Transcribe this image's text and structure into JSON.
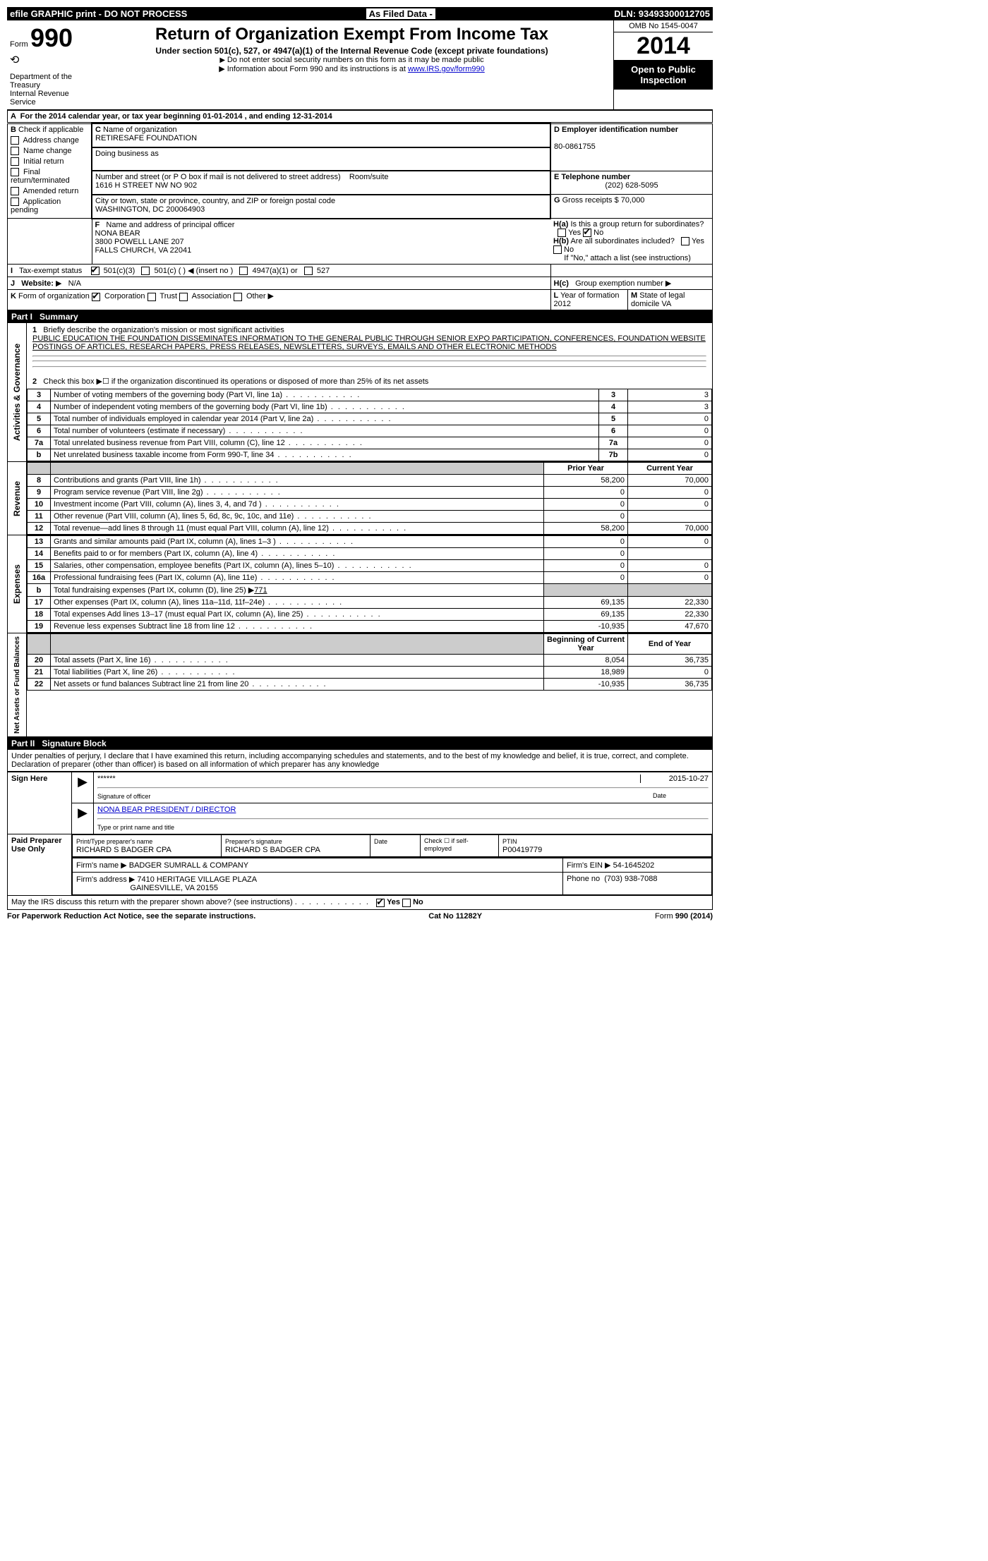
{
  "topbar": {
    "left": "efile GRAPHIC print - DO NOT PROCESS",
    "mid": "As Filed Data -",
    "right": "DLN: 93493300012705"
  },
  "header": {
    "form_prefix": "Form",
    "form_number": "990",
    "dept": "Department of the Treasury",
    "irs": "Internal Revenue Service",
    "title": "Return of Organization Exempt From Income Tax",
    "subtitle": "Under section 501(c), 527, or 4947(a)(1) of the Internal Revenue Code (except private foundations)",
    "note1": "Do not enter social security numbers on this form as it may be made public",
    "note2_prefix": "Information about Form 990 and its instructions is at ",
    "note2_link": "www.IRS.gov/form990",
    "omb": "OMB No 1545-0047",
    "year": "2014",
    "inspection": "Open to Public Inspection"
  },
  "sectionA": {
    "line": "For the 2014 calendar year, or tax year beginning 01-01-2014    , and ending 12-31-2014"
  },
  "sectionB": {
    "title": "Check if applicable",
    "items": [
      "Address change",
      "Name change",
      "Initial return",
      "Final return/terminated",
      "Amended return",
      "Application pending"
    ]
  },
  "sectionC": {
    "name_label": "Name of organization",
    "name": "RETIRESAFE FOUNDATION",
    "dba_label": "Doing business as",
    "dba": "",
    "street_label": "Number and street (or P O box if mail is not delivered to street address)",
    "street": "1616 H STREET NW NO 902",
    "room_label": "Room/suite",
    "city_label": "City or town, state or province, country, and ZIP or foreign postal code",
    "city": "WASHINGTON, DC  200064903"
  },
  "sectionD": {
    "label": "Employer identification number",
    "value": "80-0861755"
  },
  "sectionE": {
    "label": "Telephone number",
    "value": "(202) 628-5095"
  },
  "sectionG": {
    "label": "Gross receipts $",
    "value": "70,000"
  },
  "sectionF": {
    "label": "Name and address of principal officer",
    "name": "NONA BEAR",
    "addr1": "3800 POWELL LANE 207",
    "addr2": "FALLS CHURCH, VA  22041"
  },
  "sectionH": {
    "a": "Is this a group return for subordinates?",
    "b": "Are all subordinates included?",
    "b_note": "If \"No,\" attach a list (see instructions)",
    "c": "Group exemption number",
    "yes": "Yes",
    "no": "No"
  },
  "sectionI": {
    "label": "Tax-exempt status",
    "opt1": "501(c)(3)",
    "opt2": "501(c) (  )",
    "opt2_note": "(insert no )",
    "opt3": "4947(a)(1) or",
    "opt4": "527"
  },
  "sectionJ": {
    "label": "Website:",
    "value": "N/A"
  },
  "sectionK": {
    "label": "Form of organization",
    "opts": [
      "Corporation",
      "Trust",
      "Association",
      "Other"
    ]
  },
  "sectionL": {
    "label": "Year of formation",
    "value": "2012"
  },
  "sectionM": {
    "label": "State of legal domicile",
    "value": "VA"
  },
  "part1": {
    "title": "Part I",
    "name": "Summary",
    "line1_label": "Briefly describe the organization's mission or most significant activities",
    "line1_text": "PUBLIC EDUCATION    THE FOUNDATION DISSEMINATES INFORMATION TO THE GENERAL PUBLIC THROUGH SENIOR EXPO PARTICIPATION, CONFERENCES, FOUNDATION WEBSITE POSTINGS OF ARTICLES, RESEARCH PAPERS, PRESS RELEASES, NEWSLETTERS, SURVEYS, EMAILS AND OTHER ELECTRONIC METHODS",
    "line2": "Check this box ▶☐ if the organization discontinued its operations or disposed of more than 25% of its net assets",
    "governance_lines": [
      {
        "n": "3",
        "label": "Number of voting members of the governing body (Part VI, line 1a)",
        "rn": "3",
        "val": "3"
      },
      {
        "n": "4",
        "label": "Number of independent voting members of the governing body (Part VI, line 1b)",
        "rn": "4",
        "val": "3"
      },
      {
        "n": "5",
        "label": "Total number of individuals employed in calendar year 2014 (Part V, line 2a)",
        "rn": "5",
        "val": "0"
      },
      {
        "n": "6",
        "label": "Total number of volunteers (estimate if necessary)",
        "rn": "6",
        "val": "0"
      },
      {
        "n": "7a",
        "label": "Total unrelated business revenue from Part VIII, column (C), line 12",
        "rn": "7a",
        "val": "0"
      },
      {
        "n": "b",
        "label": "Net unrelated business taxable income from Form 990-T, line 34",
        "rn": "7b",
        "val": "0"
      }
    ],
    "col_headers": {
      "prior": "Prior Year",
      "current": "Current Year"
    },
    "revenue_lines": [
      {
        "n": "8",
        "label": "Contributions and grants (Part VIII, line 1h)",
        "p": "58,200",
        "c": "70,000"
      },
      {
        "n": "9",
        "label": "Program service revenue (Part VIII, line 2g)",
        "p": "0",
        "c": "0"
      },
      {
        "n": "10",
        "label": "Investment income (Part VIII, column (A), lines 3, 4, and 7d )",
        "p": "0",
        "c": "0"
      },
      {
        "n": "11",
        "label": "Other revenue (Part VIII, column (A), lines 5, 6d, 8c, 9c, 10c, and 11e)",
        "p": "0",
        "c": ""
      },
      {
        "n": "12",
        "label": "Total revenue—add lines 8 through 11 (must equal Part VIII, column (A), line 12)",
        "p": "58,200",
        "c": "70,000"
      }
    ],
    "expense_lines": [
      {
        "n": "13",
        "label": "Grants and similar amounts paid (Part IX, column (A), lines 1–3 )",
        "p": "0",
        "c": "0"
      },
      {
        "n": "14",
        "label": "Benefits paid to or for members (Part IX, column (A), line 4)",
        "p": "0",
        "c": ""
      },
      {
        "n": "15",
        "label": "Salaries, other compensation, employee benefits (Part IX, column (A), lines 5–10)",
        "p": "0",
        "c": "0"
      },
      {
        "n": "16a",
        "label": "Professional fundraising fees (Part IX, column (A), line 11e)",
        "p": "0",
        "c": "0"
      }
    ],
    "line16b_label": "Total fundraising expenses (Part IX, column (D), line 25) ▶",
    "line16b_val": "771",
    "expense_lines2": [
      {
        "n": "17",
        "label": "Other expenses (Part IX, column (A), lines 11a–11d, 11f–24e)",
        "p": "69,135",
        "c": "22,330"
      },
      {
        "n": "18",
        "label": "Total expenses Add lines 13–17 (must equal Part IX, column (A), line 25)",
        "p": "69,135",
        "c": "22,330"
      },
      {
        "n": "19",
        "label": "Revenue less expenses Subtract line 18 from line 12",
        "p": "-10,935",
        "c": "47,670"
      }
    ],
    "net_headers": {
      "begin": "Beginning of Current Year",
      "end": "End of Year"
    },
    "net_lines": [
      {
        "n": "20",
        "label": "Total assets (Part X, line 16)",
        "p": "8,054",
        "c": "36,735"
      },
      {
        "n": "21",
        "label": "Total liabilities (Part X, line 26)",
        "p": "18,989",
        "c": "0"
      },
      {
        "n": "22",
        "label": "Net assets or fund balances Subtract line 21 from line 20",
        "p": "-10,935",
        "c": "36,735"
      }
    ]
  },
  "part2": {
    "title": "Part II",
    "name": "Signature Block",
    "declaration": "Under penalties of perjury, I declare that I have examined this return, including accompanying schedules and statements, and to the best of my knowledge and belief, it is true, correct, and complete. Declaration of preparer (other than officer) is based on all information of which preparer has any knowledge",
    "sign_here": "Sign Here",
    "sig_stars": "******",
    "sig_date": "2015-10-27",
    "sig_of_officer": "Signature of officer",
    "date_label": "Date",
    "officer_name": "NONA BEAR PRESIDENT / DIRECTOR",
    "type_label": "Type or print name and title",
    "paid": "Paid Preparer Use Only",
    "prep_name_label": "Print/Type preparer's name",
    "prep_name": "RICHARD S BADGER CPA",
    "prep_sig_label": "Preparer's signature",
    "prep_sig": "RICHARD S BADGER CPA",
    "check_label": "Check ☐ if self-employed",
    "ptin_label": "PTIN",
    "ptin": "P00419779",
    "firm_name_label": "Firm's name    ▶",
    "firm_name": "BADGER SUMRALL & COMPANY",
    "firm_ein_label": "Firm's EIN ▶",
    "firm_ein": "54-1645202",
    "firm_addr_label": "Firm's address ▶",
    "firm_addr": "7410 HERITAGE VILLAGE PLAZA",
    "firm_addr2": "GAINESVILLE, VA  20155",
    "phone_label": "Phone no",
    "phone": "(703) 938-7088",
    "discuss": "May the IRS discuss this return with the preparer shown above? (see instructions)"
  },
  "footer": {
    "left": "For Paperwork Reduction Act Notice, see the separate instructions.",
    "mid": "Cat No 11282Y",
    "right": "Form 990 (2014)"
  }
}
